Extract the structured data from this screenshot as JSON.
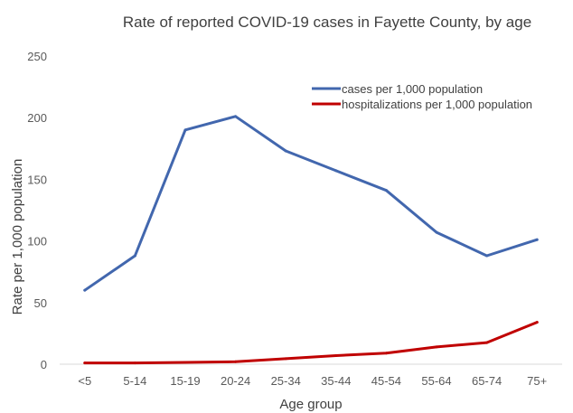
{
  "chart_data": {
    "type": "line",
    "title": "Rate of reported COVID-19 cases in Fayette County, by age",
    "xlabel": "Age group",
    "ylabel": "Rate per 1,000 population",
    "categories": [
      "<5",
      "5-14",
      "15-19",
      "20-24",
      "25-34",
      "35-44",
      "45-54",
      "55-64",
      "65-74",
      "75+"
    ],
    "ylim": [
      0,
      250
    ],
    "yticks": [
      "0",
      "50",
      "100",
      "150",
      "200",
      "250"
    ],
    "grid": false,
    "legend_position": "top-right",
    "series": [
      {
        "name": "cases per 1,000 population",
        "color": "#4267AE",
        "values": [
          60,
          88,
          190,
          201,
          173,
          157,
          141,
          107,
          88,
          101
        ]
      },
      {
        "name": "hospitalizations per 1,000 population",
        "color": "#C00000",
        "values": [
          1,
          1,
          1.5,
          2,
          4.5,
          7,
          9,
          14,
          17.5,
          34
        ]
      }
    ]
  }
}
